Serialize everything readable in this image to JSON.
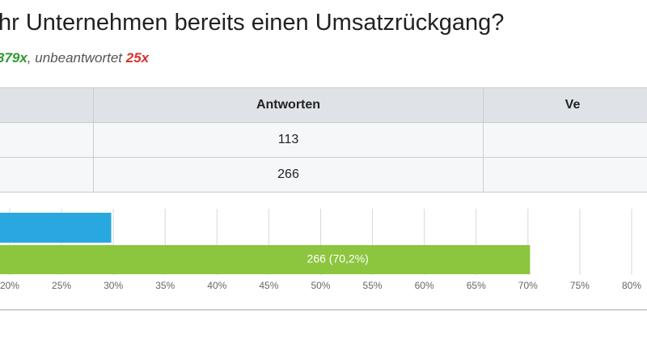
{
  "header": {
    "title": "hr Unternehmen bereits einen Umsatzrückgang?",
    "answered": "379x",
    "separator": ", unbeantwortet ",
    "unanswered": "25x"
  },
  "table": {
    "columns": [
      "",
      "Antworten",
      "Ve"
    ],
    "rows": [
      [
        "",
        "113",
        ""
      ],
      [
        "",
        "266",
        ""
      ]
    ]
  },
  "chart_data": {
    "type": "barh",
    "categories": [
      null,
      null
    ],
    "values": [
      29.8,
      70.2
    ],
    "value_labels": [
      null,
      "266 (70,2%)"
    ],
    "colors": [
      "#29a8e0",
      "#8cc63f"
    ],
    "xlim": [
      0,
      80
    ],
    "xticks": [
      {
        "value": 20,
        "label": "20%"
      },
      {
        "value": 25,
        "label": "25%"
      },
      {
        "value": 30,
        "label": "30%"
      },
      {
        "value": 35,
        "label": "35%"
      },
      {
        "value": 40,
        "label": "40%"
      },
      {
        "value": 45,
        "label": "45%"
      },
      {
        "value": 50,
        "label": "50%"
      },
      {
        "value": 55,
        "label": "55%"
      },
      {
        "value": 60,
        "label": "60%"
      },
      {
        "value": 65,
        "label": "65%"
      },
      {
        "value": 70,
        "label": "70%"
      },
      {
        "value": 75,
        "label": "75%"
      },
      {
        "value": 80,
        "label": "80%"
      }
    ],
    "grid": true
  }
}
